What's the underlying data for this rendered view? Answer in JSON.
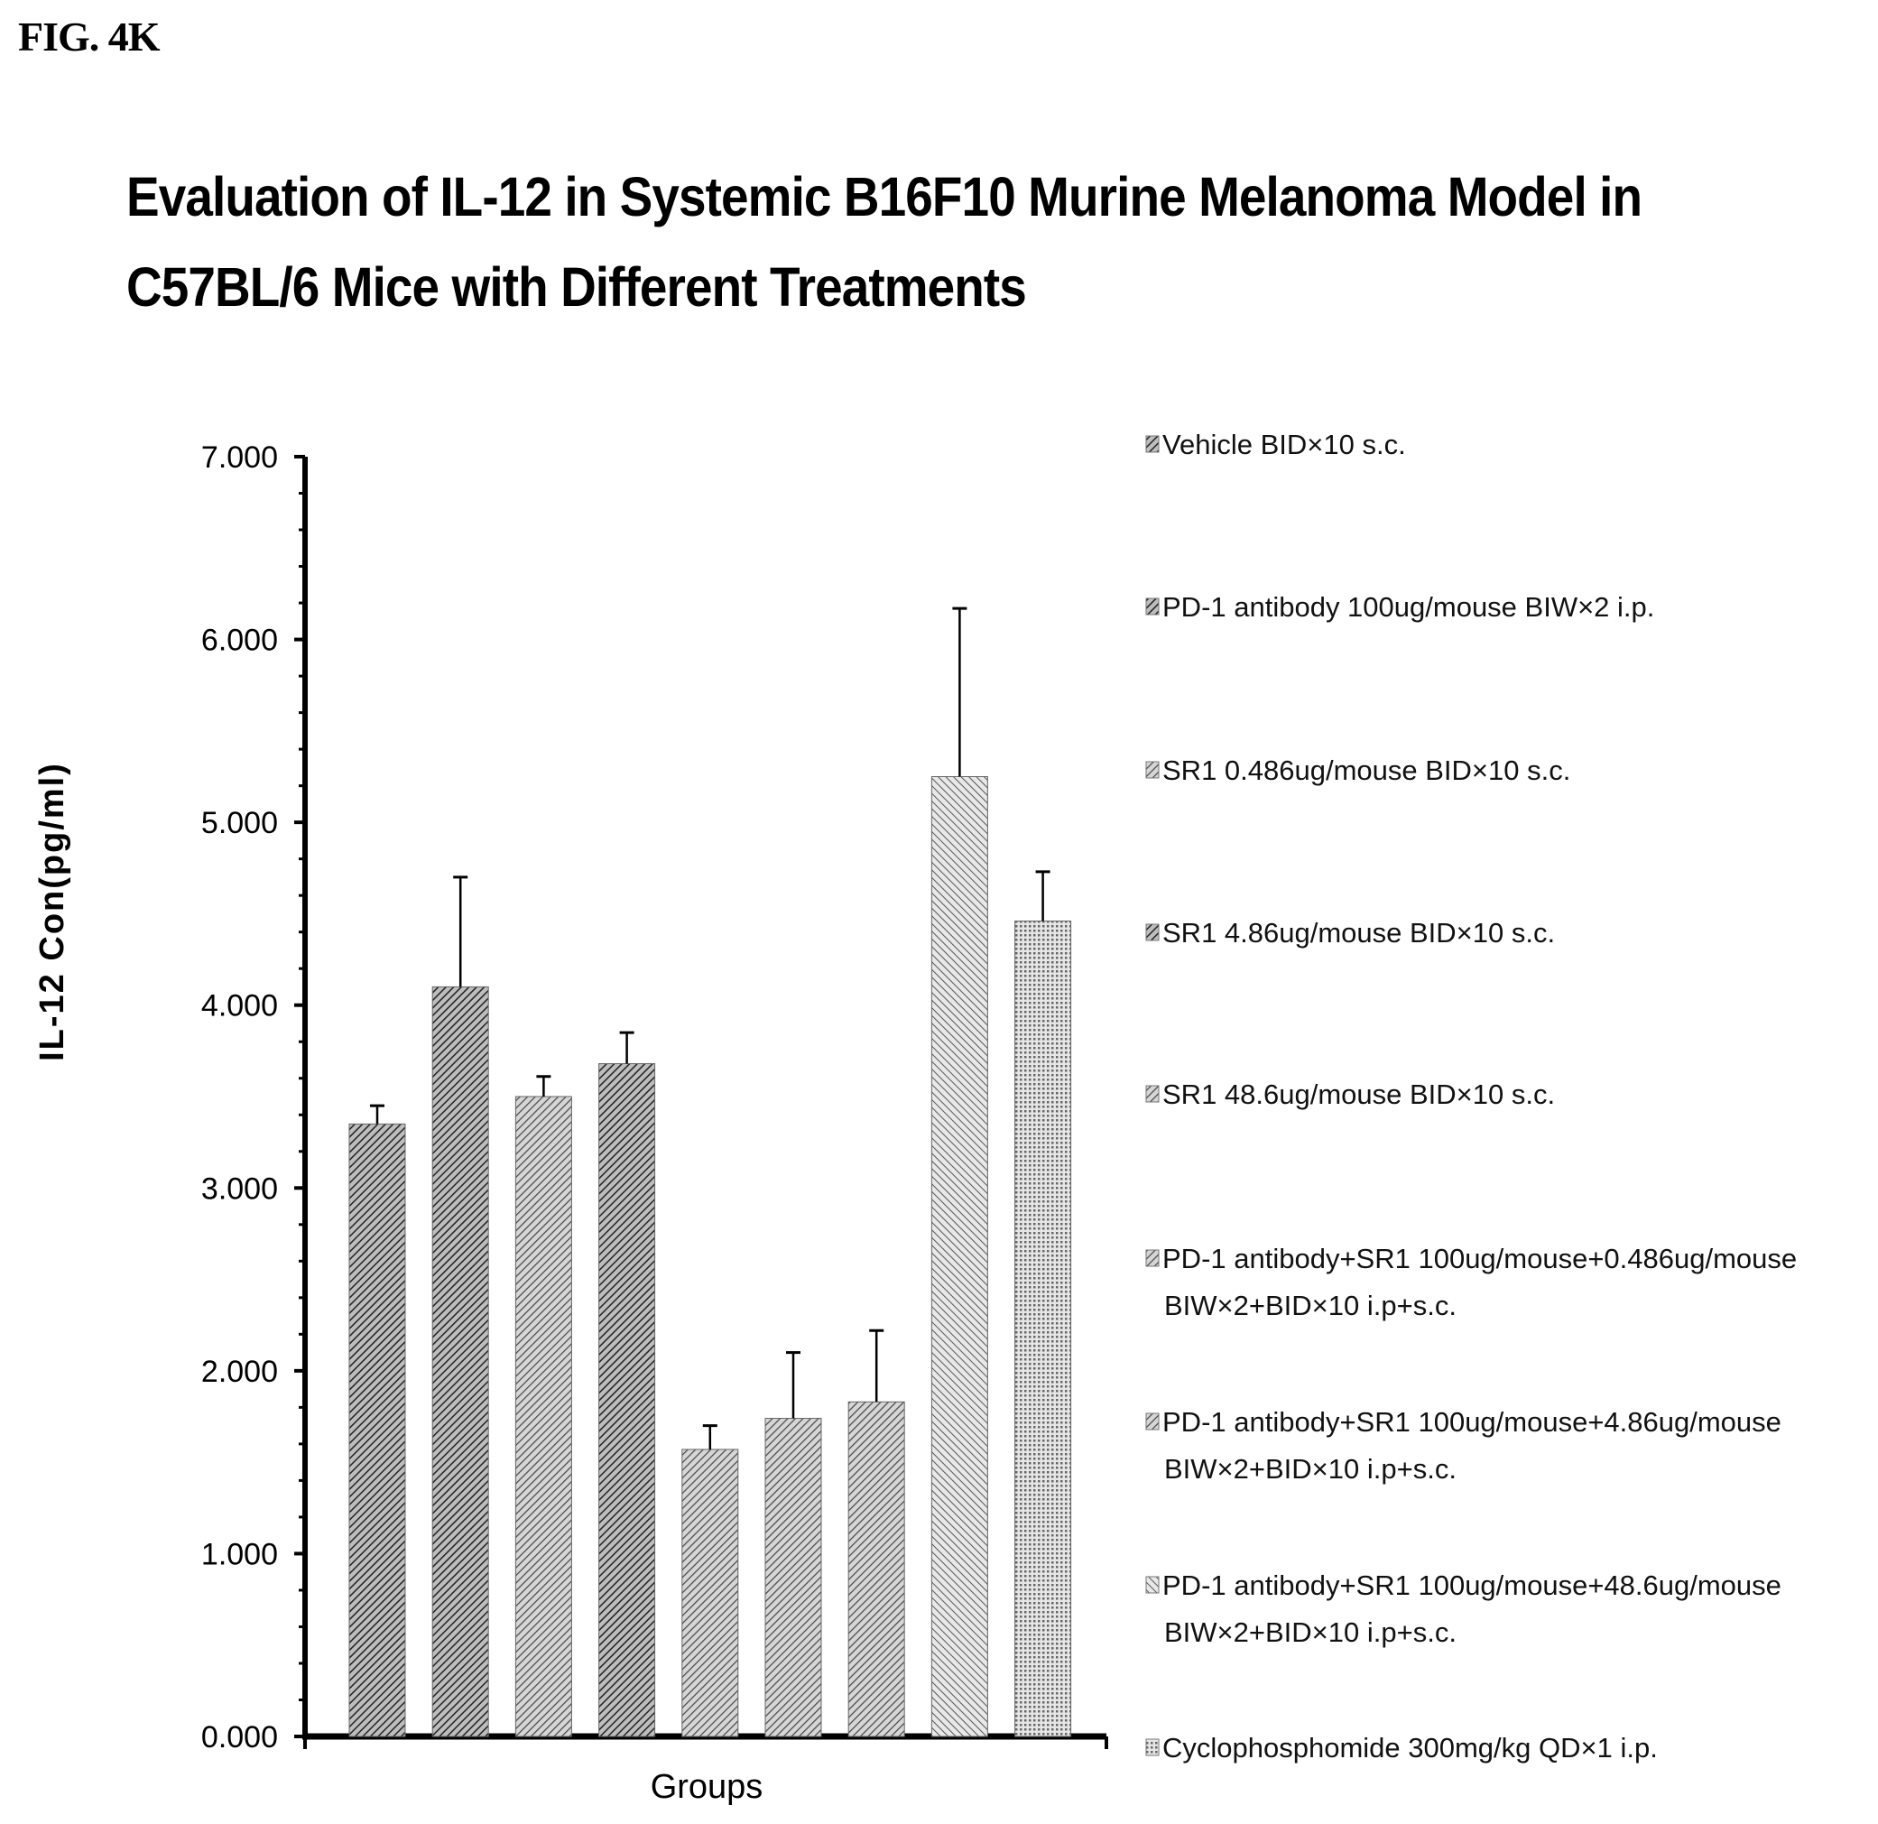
{
  "figure_label": "FIG. 4K",
  "chart_data": {
    "type": "bar",
    "title": "Evaluation of IL-12 in Systemic B16F10 Murine Melanoma Model in C57BL/6 Mice with Different Treatments",
    "xlabel": "Groups",
    "ylabel": "IL-12 Con(pg/ml)",
    "ylim": [
      0,
      7
    ],
    "yticks": [
      "0.000",
      "1.000",
      "2.000",
      "3.000",
      "4.000",
      "5.000",
      "6.000",
      "7.000"
    ],
    "grid": false,
    "legend_position": "right",
    "series": [
      {
        "name": "Vehicle BID×10 s.c.",
        "value": 3.35,
        "error": 0.1
      },
      {
        "name": "PD-1 antibody 100ug/mouse BIW×2 i.p.",
        "value": 4.1,
        "error": 0.6
      },
      {
        "name": "SR1 0.486ug/mouse BID×10 s.c.",
        "value": 3.5,
        "error": 0.11
      },
      {
        "name": "SR1 4.86ug/mouse BID×10 s.c.",
        "value": 3.68,
        "error": 0.17
      },
      {
        "name": "SR1 48.6ug/mouse BID×10 s.c.",
        "value": 1.57,
        "error": 0.13
      },
      {
        "name": "PD-1 antibody+SR1 100ug/mouse+0.486ug/mouse BIW×2+BID×10 i.p+s.c.",
        "value": 1.74,
        "error": 0.36
      },
      {
        "name": "PD-1 antibody+SR1 100ug/mouse+4.86ug/mouse BIW×2+BID×10 i.p+s.c.",
        "value": 1.83,
        "error": 0.39
      },
      {
        "name": "PD-1 antibody+SR1 100ug/mouse+48.6ug/mouse BIW×2+BID×10 i.p+s.c.",
        "value": 5.25,
        "error": 0.92
      },
      {
        "name": "Cyclophosphomide 300mg/kg QD×1 i.p.",
        "value": 4.46,
        "error": 0.27
      }
    ],
    "legend_lines": [
      [
        "Vehicle  BID×10 s.c."
      ],
      [
        "PD-1 antibody 100ug/mouse BIW×2 i.p."
      ],
      [
        "SR1 0.486ug/mouse BID×10 s.c."
      ],
      [
        "SR1 4.86ug/mouse BID×10 s.c."
      ],
      [
        "SR1 48.6ug/mouse BID×10 s.c."
      ],
      [
        "PD-1 antibody+SR1 100ug/mouse+0.486ug/mouse",
        "BIW×2+BID×10 i.p+s.c."
      ],
      [
        "PD-1 antibody+SR1 100ug/mouse+4.86ug/mouse",
        "BIW×2+BID×10 i.p+s.c."
      ],
      [
        "PD-1 antibody+SR1 100ug/mouse+48.6ug/mouse",
        "BIW×2+BID×10 i.p+s.c."
      ],
      [
        "Cyclophosphomide 300mg/kg QD×1 i.p."
      ]
    ]
  }
}
